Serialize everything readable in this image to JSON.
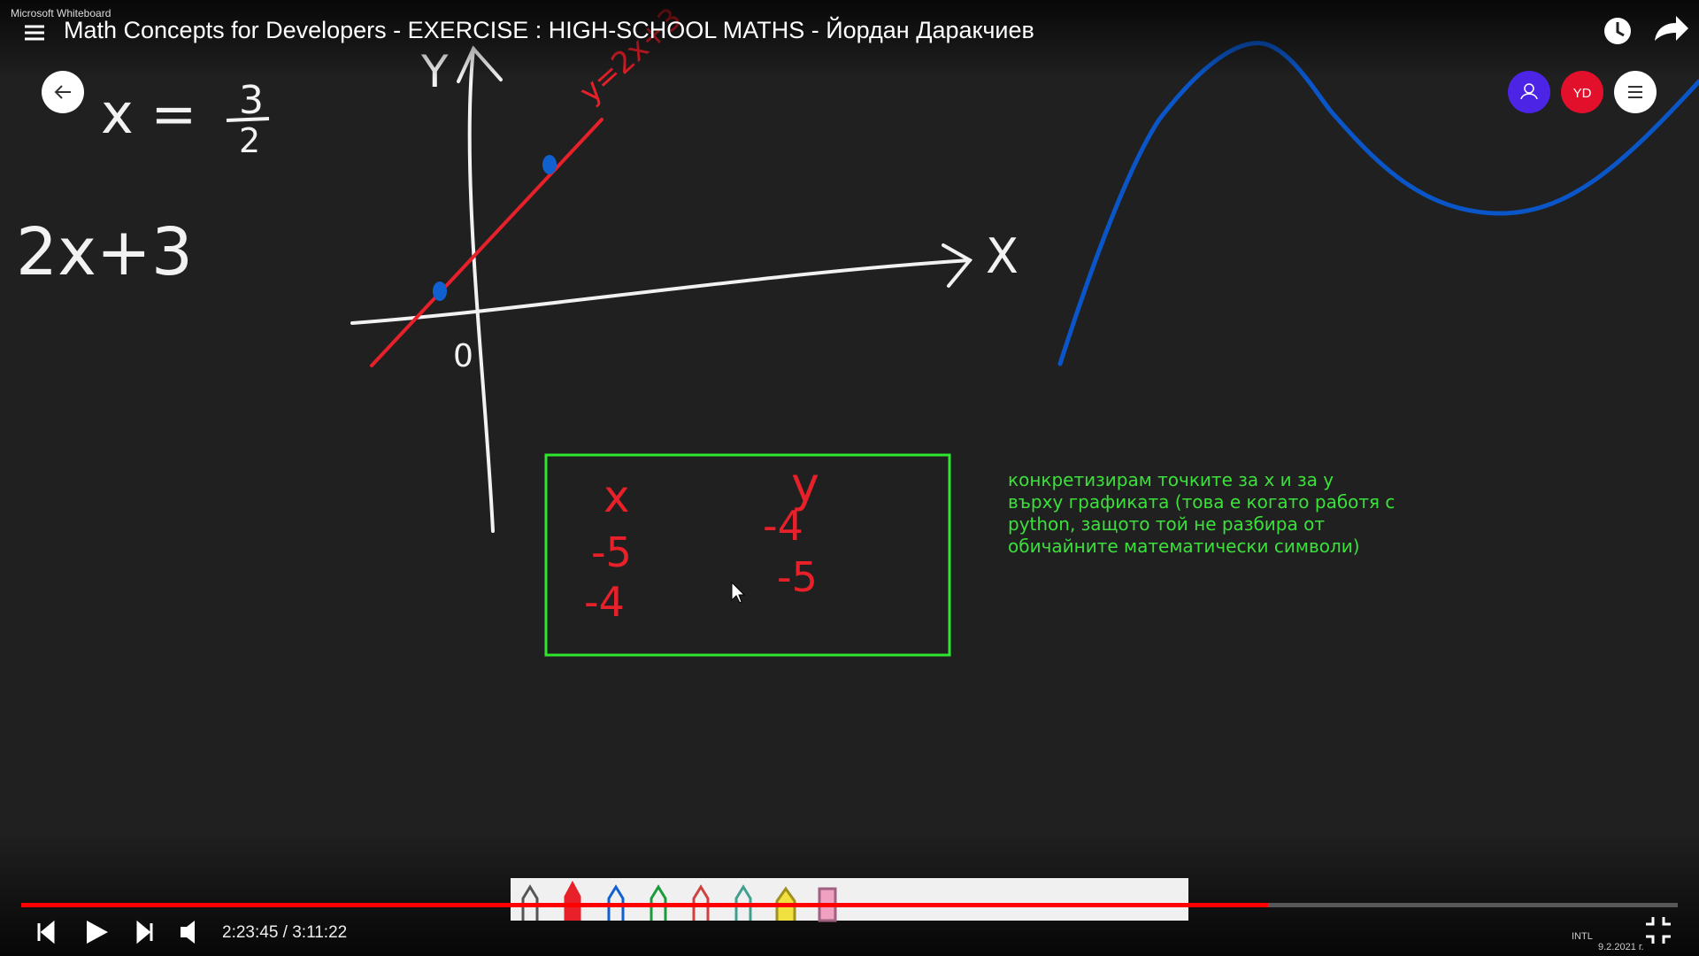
{
  "window_title": "Microsoft Whiteboard",
  "video_title": "Math Concepts for Developers - EXERCISE : HIGH-SCHOOL MATHS - Йордан Даракчиев",
  "whiteboard": {
    "equation": {
      "lhs": "x =",
      "numerator": "3",
      "denominator": "2"
    },
    "expression": "2x+3",
    "graph": {
      "y_axis": "Y",
      "x_axis": "X",
      "origin": "0",
      "line_label": "y=2x+3"
    },
    "table": {
      "headers": [
        "x",
        "y"
      ],
      "rows": [
        [
          "-5",
          "-4"
        ],
        [
          "-4",
          "-5"
        ]
      ]
    },
    "note": [
      "конкретизирам точките за x и за y",
      "върху графиката (това е когато работя с",
      "python, защото той не разбира от",
      "обичайните математически символи)"
    ],
    "avatar": "YD"
  },
  "player": {
    "time": "2:23:45 / 3:11:22"
  },
  "taskbar": {
    "lang": "INTL",
    "date": "9.2.2021 г."
  }
}
